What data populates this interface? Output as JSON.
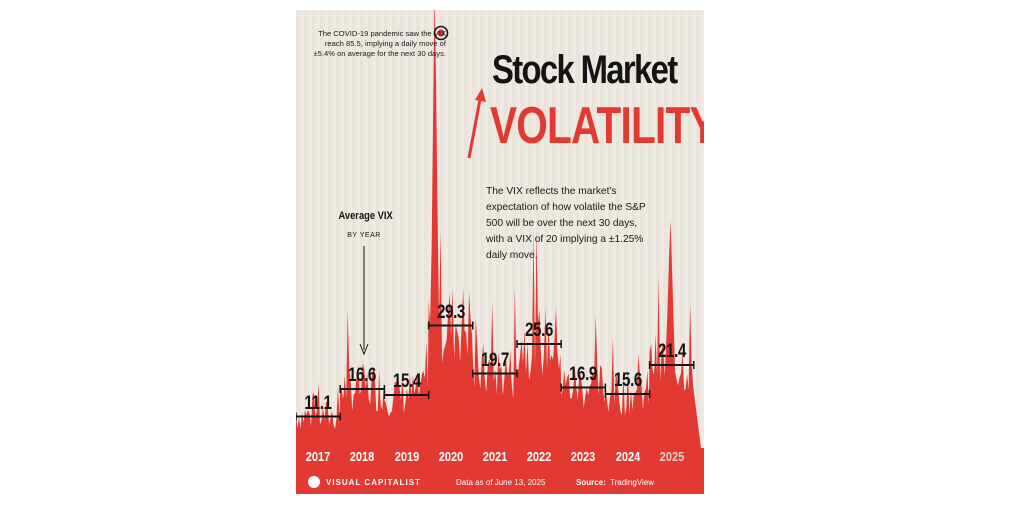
{
  "title_line1": "Stock Market",
  "title_line2": "VOLATILITY",
  "subtitle": "The VIX reflects the market's expectation of how volatile the S&P 500 will be over the next 30 days, with a VIX of 20 implying a ±1.25% daily move.",
  "covid_annotation": "The COVID-19 pandemic saw the VIX reach 85.5, implying a daily move of ±5.4% on average for the next 30 days.",
  "avg_label": "Average VIX",
  "avg_sublabel": "BY YEAR",
  "footer": {
    "brand": "VISUAL CAPITALIST",
    "data_as_of": "Data as of June 13, 2025",
    "source_label": "Source:",
    "source_value": "TradingView"
  },
  "colors": {
    "background": "#eeeae3",
    "accent": "#e23a32",
    "text": "#141414"
  },
  "icons": [
    "arrow-up-icon",
    "down-arrow-icon",
    "peak-marker-icon",
    "visual-capitalist-logo-icon"
  ],
  "chart_data": {
    "type": "area",
    "title": "Stock Market Volatility",
    "categories": [
      "2017",
      "2018",
      "2019",
      "2020",
      "2021",
      "2022",
      "2023",
      "2024",
      "2025"
    ],
    "series": [
      {
        "name": "Average VIX",
        "values": [
          11.1,
          16.6,
          15.4,
          29.3,
          19.7,
          25.6,
          16.9,
          15.6,
          21.4
        ]
      }
    ],
    "peak": {
      "year": "2020",
      "value": 85.5
    },
    "value_labels": [
      "11.1",
      "16.6",
      "15.4",
      "29.3",
      "19.7",
      "25.6",
      "16.9",
      "15.6",
      "21.4"
    ]
  }
}
